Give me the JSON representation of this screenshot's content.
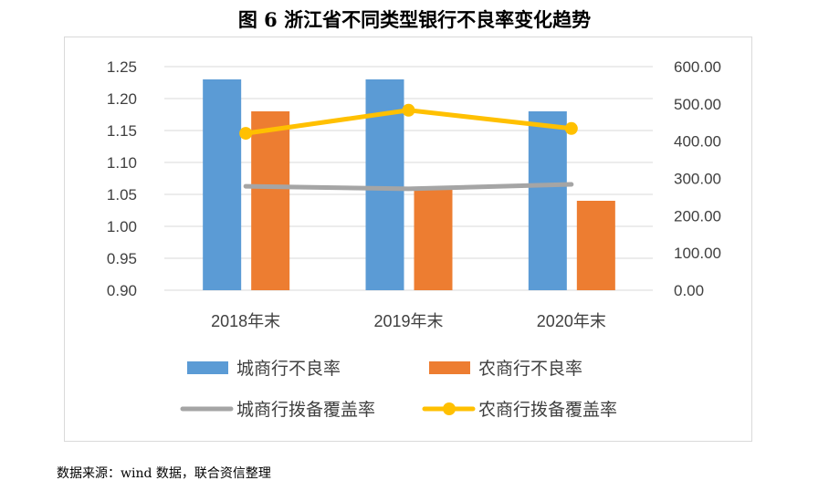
{
  "chart_data": {
    "type": "bar",
    "title": "图 6 浙江省不同类型银行不良率变化趋势",
    "categories": [
      "2018年末",
      "2019年末",
      "2020年末"
    ],
    "y_left": {
      "range": [
        0.9,
        1.25
      ],
      "ticks": [
        "0.90",
        "0.95",
        "1.00",
        "1.05",
        "1.10",
        "1.15",
        "1.20",
        "1.25"
      ]
    },
    "y_right": {
      "range": [
        0,
        600
      ],
      "ticks": [
        "0.00",
        "100.00",
        "200.00",
        "300.00",
        "400.00",
        "500.00",
        "600.00"
      ]
    },
    "grid": true,
    "legend_position": "bottom",
    "series": [
      {
        "name": "城商行不良率",
        "type": "bar",
        "axis": "left",
        "color": "#5b9bd5",
        "values": [
          1.23,
          1.23,
          1.18
        ]
      },
      {
        "name": "农商行不良率",
        "type": "bar",
        "axis": "left",
        "color": "#ed7d31",
        "values": [
          1.18,
          1.06,
          1.04
        ]
      },
      {
        "name": "城商行拨备覆盖率",
        "type": "line",
        "axis": "right",
        "color": "#a5a5a5",
        "values": [
          279,
          272,
          284
        ]
      },
      {
        "name": "农商行拨备覆盖率",
        "type": "line",
        "axis": "right",
        "color": "#ffc000",
        "markers": true,
        "values": [
          421,
          483,
          434
        ]
      }
    ]
  },
  "source": "数据来源：wind 数据，联合资信整理"
}
